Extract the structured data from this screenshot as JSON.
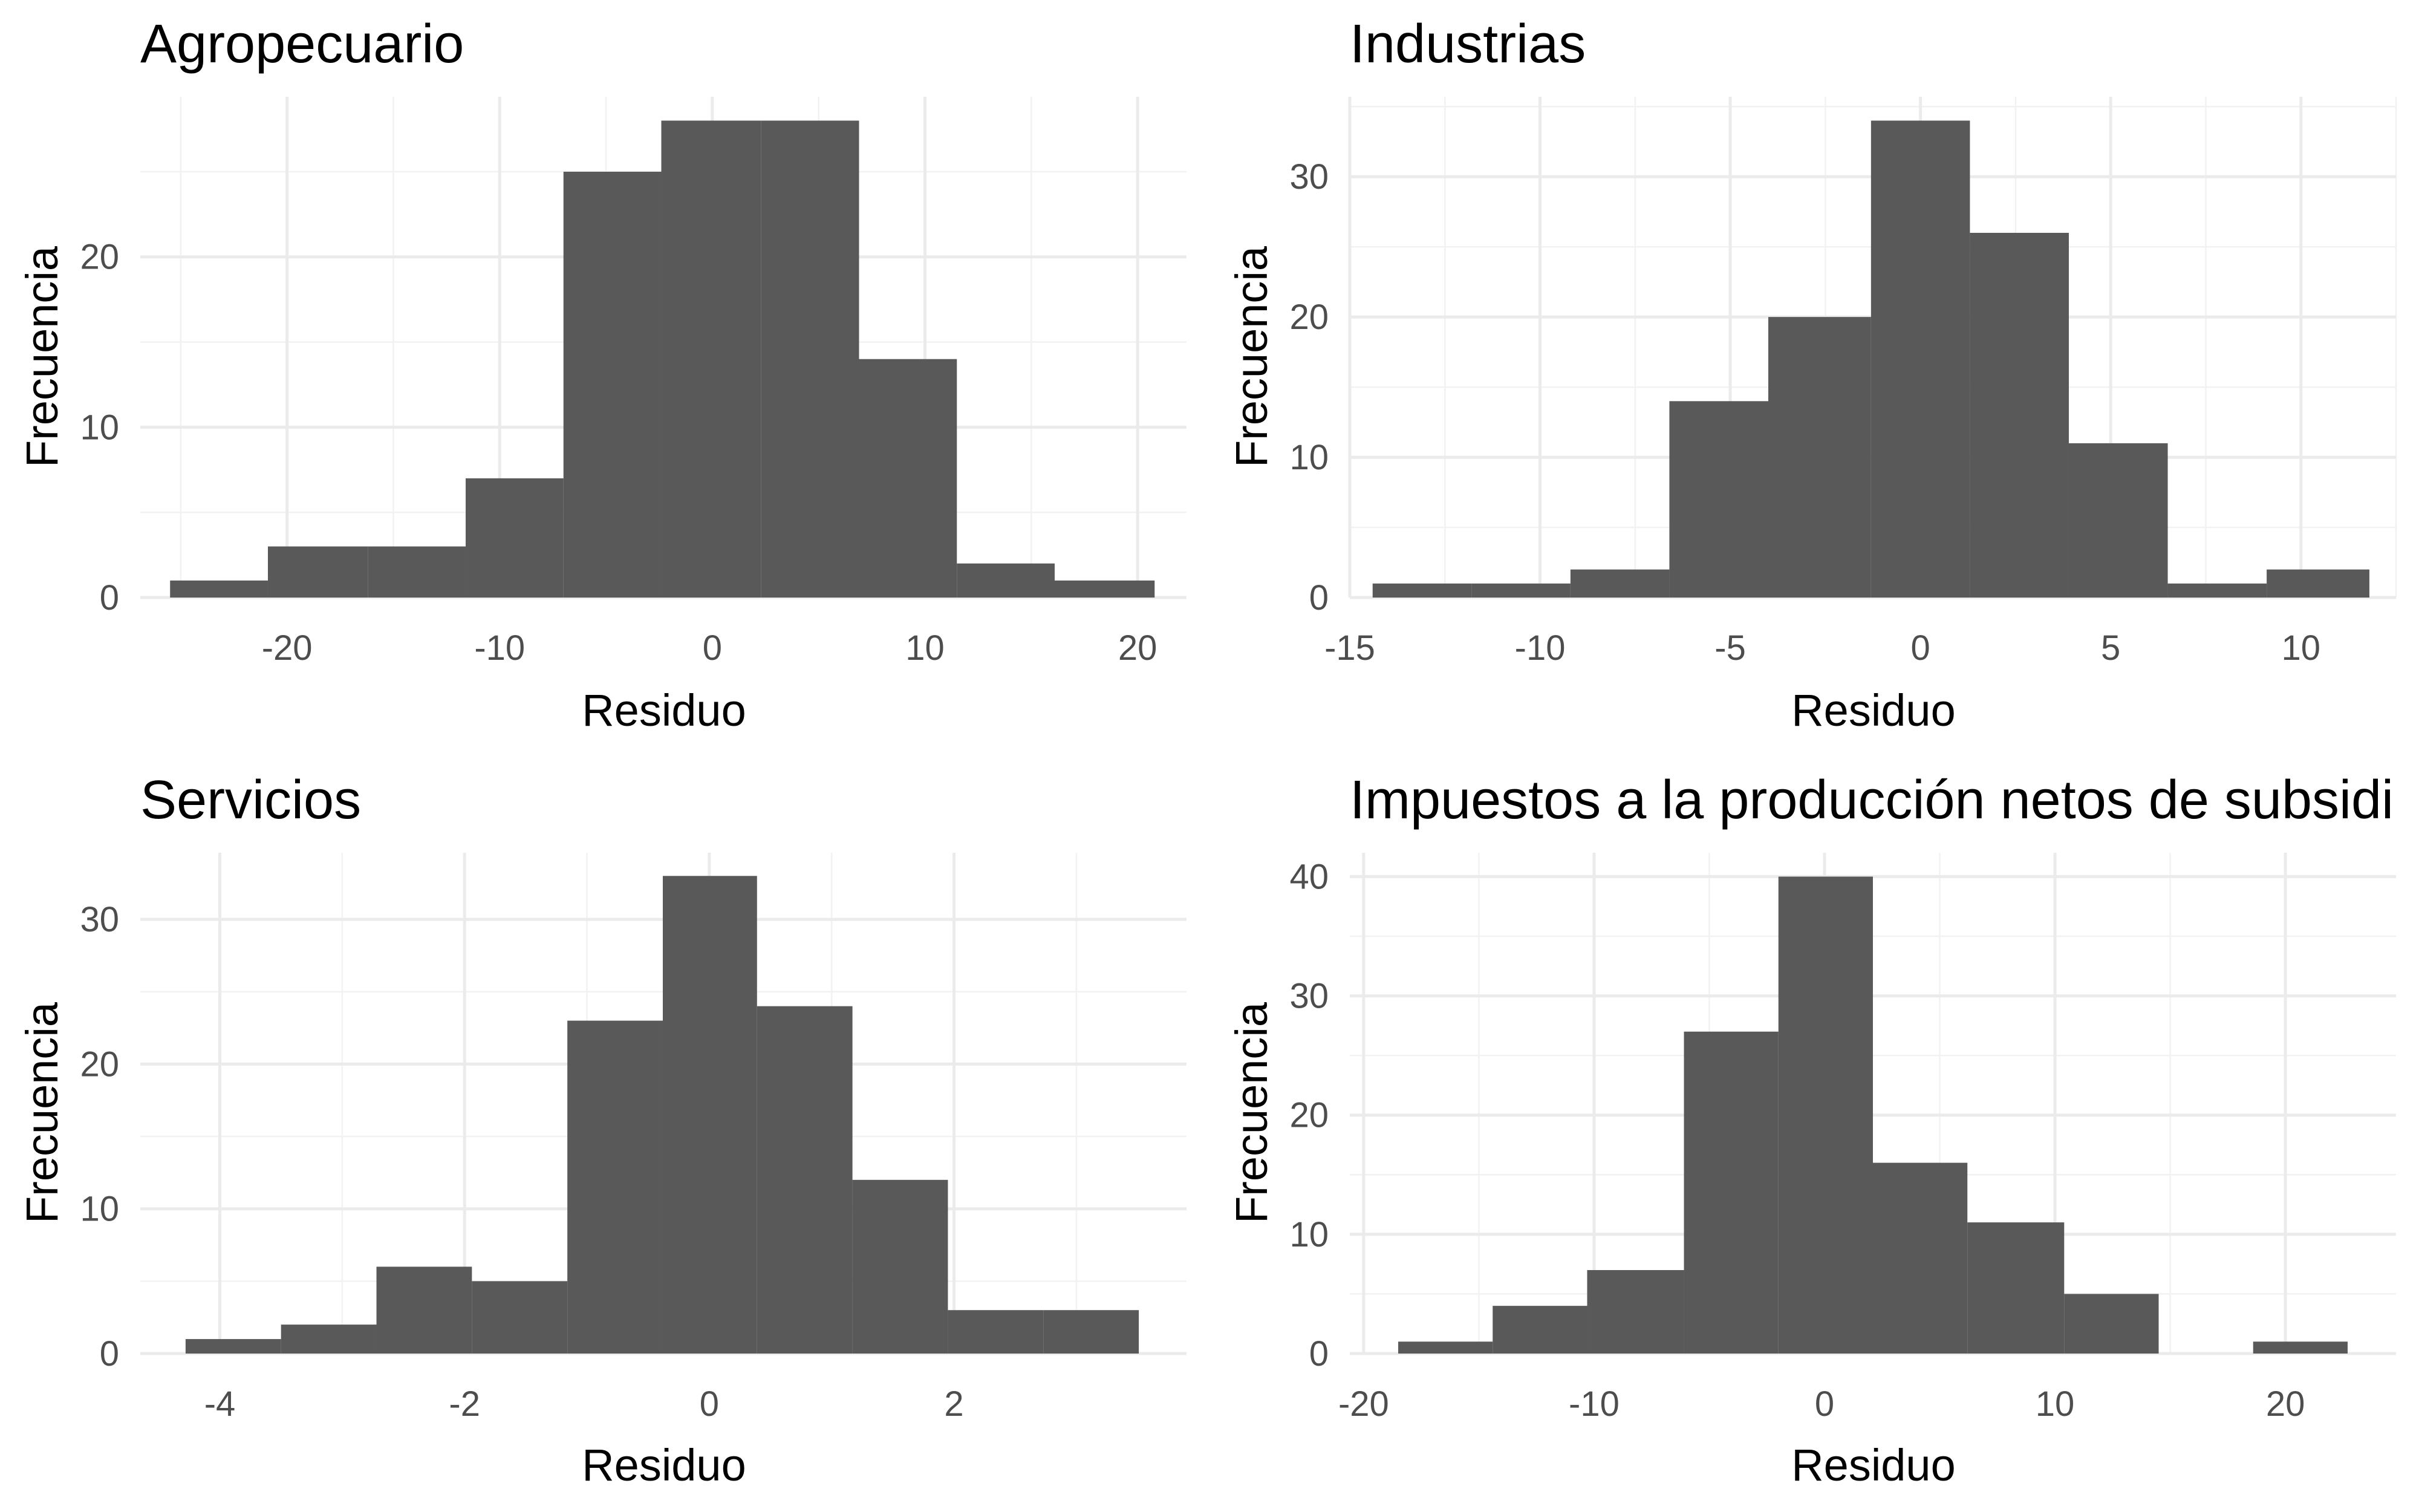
{
  "colors": {
    "bar": "#595959",
    "grid": "#ebebeb",
    "background": "#ffffff"
  },
  "chart_data": [
    {
      "type": "bar",
      "title": "Agropecuario",
      "xlabel": "Residuo",
      "ylabel": "Frecuencia",
      "grid": true,
      "xlim": [
        -26.9,
        22.3
      ],
      "ylim": [
        0,
        29.4
      ],
      "xticks": [
        -20,
        -10,
        0,
        10,
        20
      ],
      "yticks": [
        0,
        10,
        20
      ],
      "bin_edges": [
        -25.5,
        -20.9,
        -16.2,
        -11.6,
        -7.0,
        -2.4,
        2.3,
        6.9,
        11.5,
        16.1,
        20.8
      ],
      "values": [
        1,
        3,
        3,
        7,
        25,
        28,
        28,
        14,
        2,
        1
      ]
    },
    {
      "type": "bar",
      "title": "Industrias",
      "xlabel": "Residuo",
      "ylabel": "Frecuencia",
      "grid": true,
      "xlim": [
        -15.0,
        12.5
      ],
      "ylim": [
        0,
        35.7
      ],
      "xticks": [
        -15,
        -10,
        -5,
        0,
        5,
        10
      ],
      "yticks": [
        0,
        10,
        20,
        30
      ],
      "bin_edges": [
        -14.4,
        -11.8,
        -9.2,
        -6.6,
        -4.0,
        -1.3,
        1.3,
        3.9,
        6.5,
        9.1,
        11.8
      ],
      "values": [
        1,
        1,
        2,
        14,
        20,
        34,
        26,
        11,
        1,
        2
      ]
    },
    {
      "type": "bar",
      "title": "Servicios",
      "xlabel": "Residuo",
      "ylabel": "Frecuencia",
      "grid": true,
      "xlim": [
        -4.65,
        3.9
      ],
      "ylim": [
        0,
        34.6
      ],
      "xticks": [
        -4,
        -2,
        0,
        2
      ],
      "yticks": [
        0,
        10,
        20,
        30
      ],
      "bin_edges": [
        -4.28,
        -3.5,
        -2.72,
        -1.94,
        -1.16,
        -0.38,
        0.39,
        1.17,
        1.95,
        2.73,
        3.51
      ],
      "values": [
        1,
        2,
        6,
        5,
        23,
        33,
        24,
        12,
        3,
        3
      ]
    },
    {
      "type": "bar",
      "title": "Impuestos a la producción netos de subsidi",
      "xlabel": "Residuo",
      "ylabel": "Frecuencia",
      "grid": true,
      "xlim": [
        -20.6,
        24.8
      ],
      "ylim": [
        0,
        42
      ],
      "xticks": [
        -20,
        -10,
        0,
        10,
        20
      ],
      "yticks": [
        0,
        10,
        20,
        30,
        40
      ],
      "bin_edges": [
        -18.5,
        -14.4,
        -10.3,
        -6.1,
        -2.0,
        2.1,
        6.2,
        10.4,
        14.5,
        18.6,
        22.7
      ],
      "values": [
        1,
        4,
        7,
        27,
        40,
        16,
        11,
        5,
        0,
        1
      ]
    }
  ]
}
